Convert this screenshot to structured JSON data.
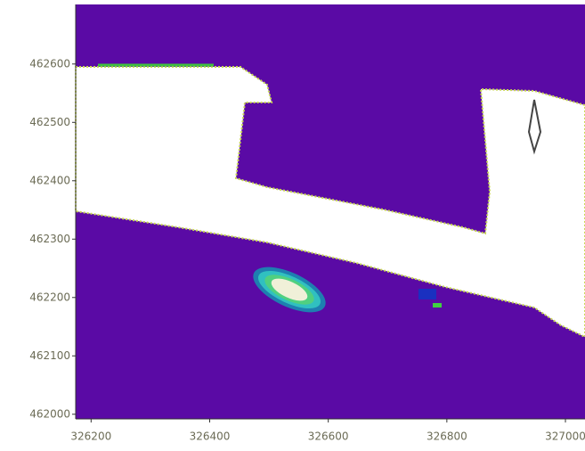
{
  "chart_data": {
    "type": "map",
    "xlim": [
      326174,
      327033
    ],
    "ylim": [
      461992,
      462702
    ],
    "xticks": [
      326200,
      326400,
      326600,
      326800,
      327000
    ],
    "yticks": [
      462000,
      462100,
      462200,
      462300,
      462400,
      462500,
      462600
    ]
  }
}
